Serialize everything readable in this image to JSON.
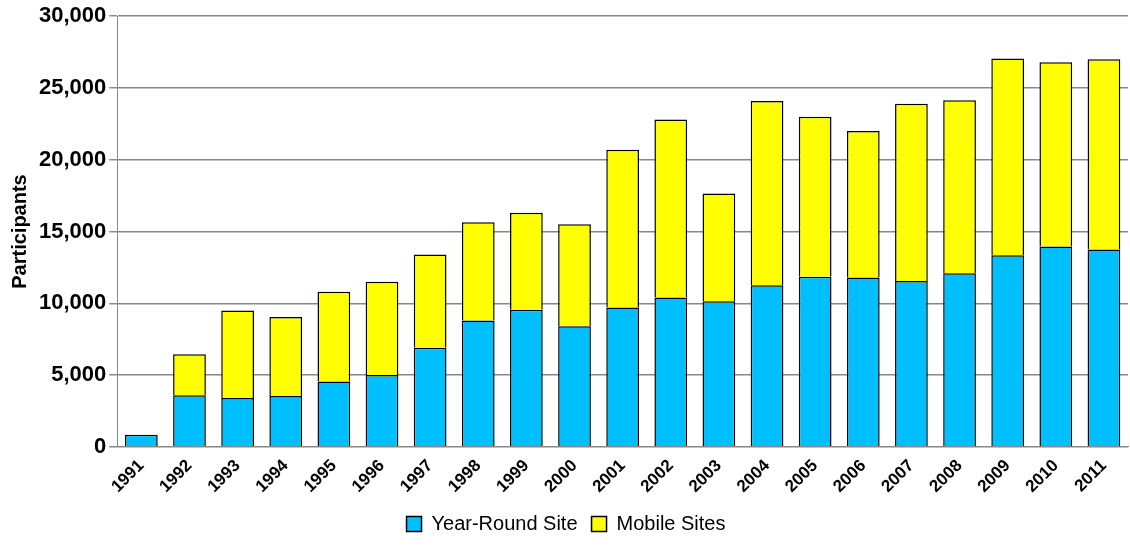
{
  "chart_data": {
    "type": "bar",
    "stacked": true,
    "ylabel": "Participants",
    "categories": [
      "1991",
      "1992",
      "1993",
      "1994",
      "1995",
      "1996",
      "1997",
      "1998",
      "1999",
      "2000",
      "2001",
      "2002",
      "2003",
      "2004",
      "2005",
      "2006",
      "2007",
      "2008",
      "2009",
      "2010",
      "2011"
    ],
    "series": [
      {
        "name": "Year-Round Site",
        "color": "#00bfff",
        "values": [
          850,
          3600,
          3400,
          3550,
          4550,
          5000,
          6900,
          8800,
          9550,
          8400,
          9700,
          10400,
          10150,
          11250,
          11850,
          11800,
          11550,
          12100,
          13350,
          13950,
          13750
        ]
      },
      {
        "name": "Mobile Sites",
        "color": "#ffff00",
        "values": [
          0,
          2850,
          6100,
          5500,
          6250,
          6500,
          6500,
          6850,
          6750,
          7100,
          11000,
          12400,
          7500,
          12850,
          11150,
          10200,
          12350,
          12050,
          13700,
          12850,
          13250
        ]
      }
    ],
    "ylim": [
      0,
      30000
    ],
    "yticks": [
      {
        "value": 0,
        "label": "0"
      },
      {
        "value": 5000,
        "label": "5,000"
      },
      {
        "value": 10000,
        "label": "10,000"
      },
      {
        "value": 15000,
        "label": "15,000"
      },
      {
        "value": 20000,
        "label": "20,000"
      },
      {
        "value": 25000,
        "label": "25,000"
      },
      {
        "value": 30000,
        "label": "30,000"
      }
    ],
    "grid": "y",
    "legend": "bottom"
  }
}
